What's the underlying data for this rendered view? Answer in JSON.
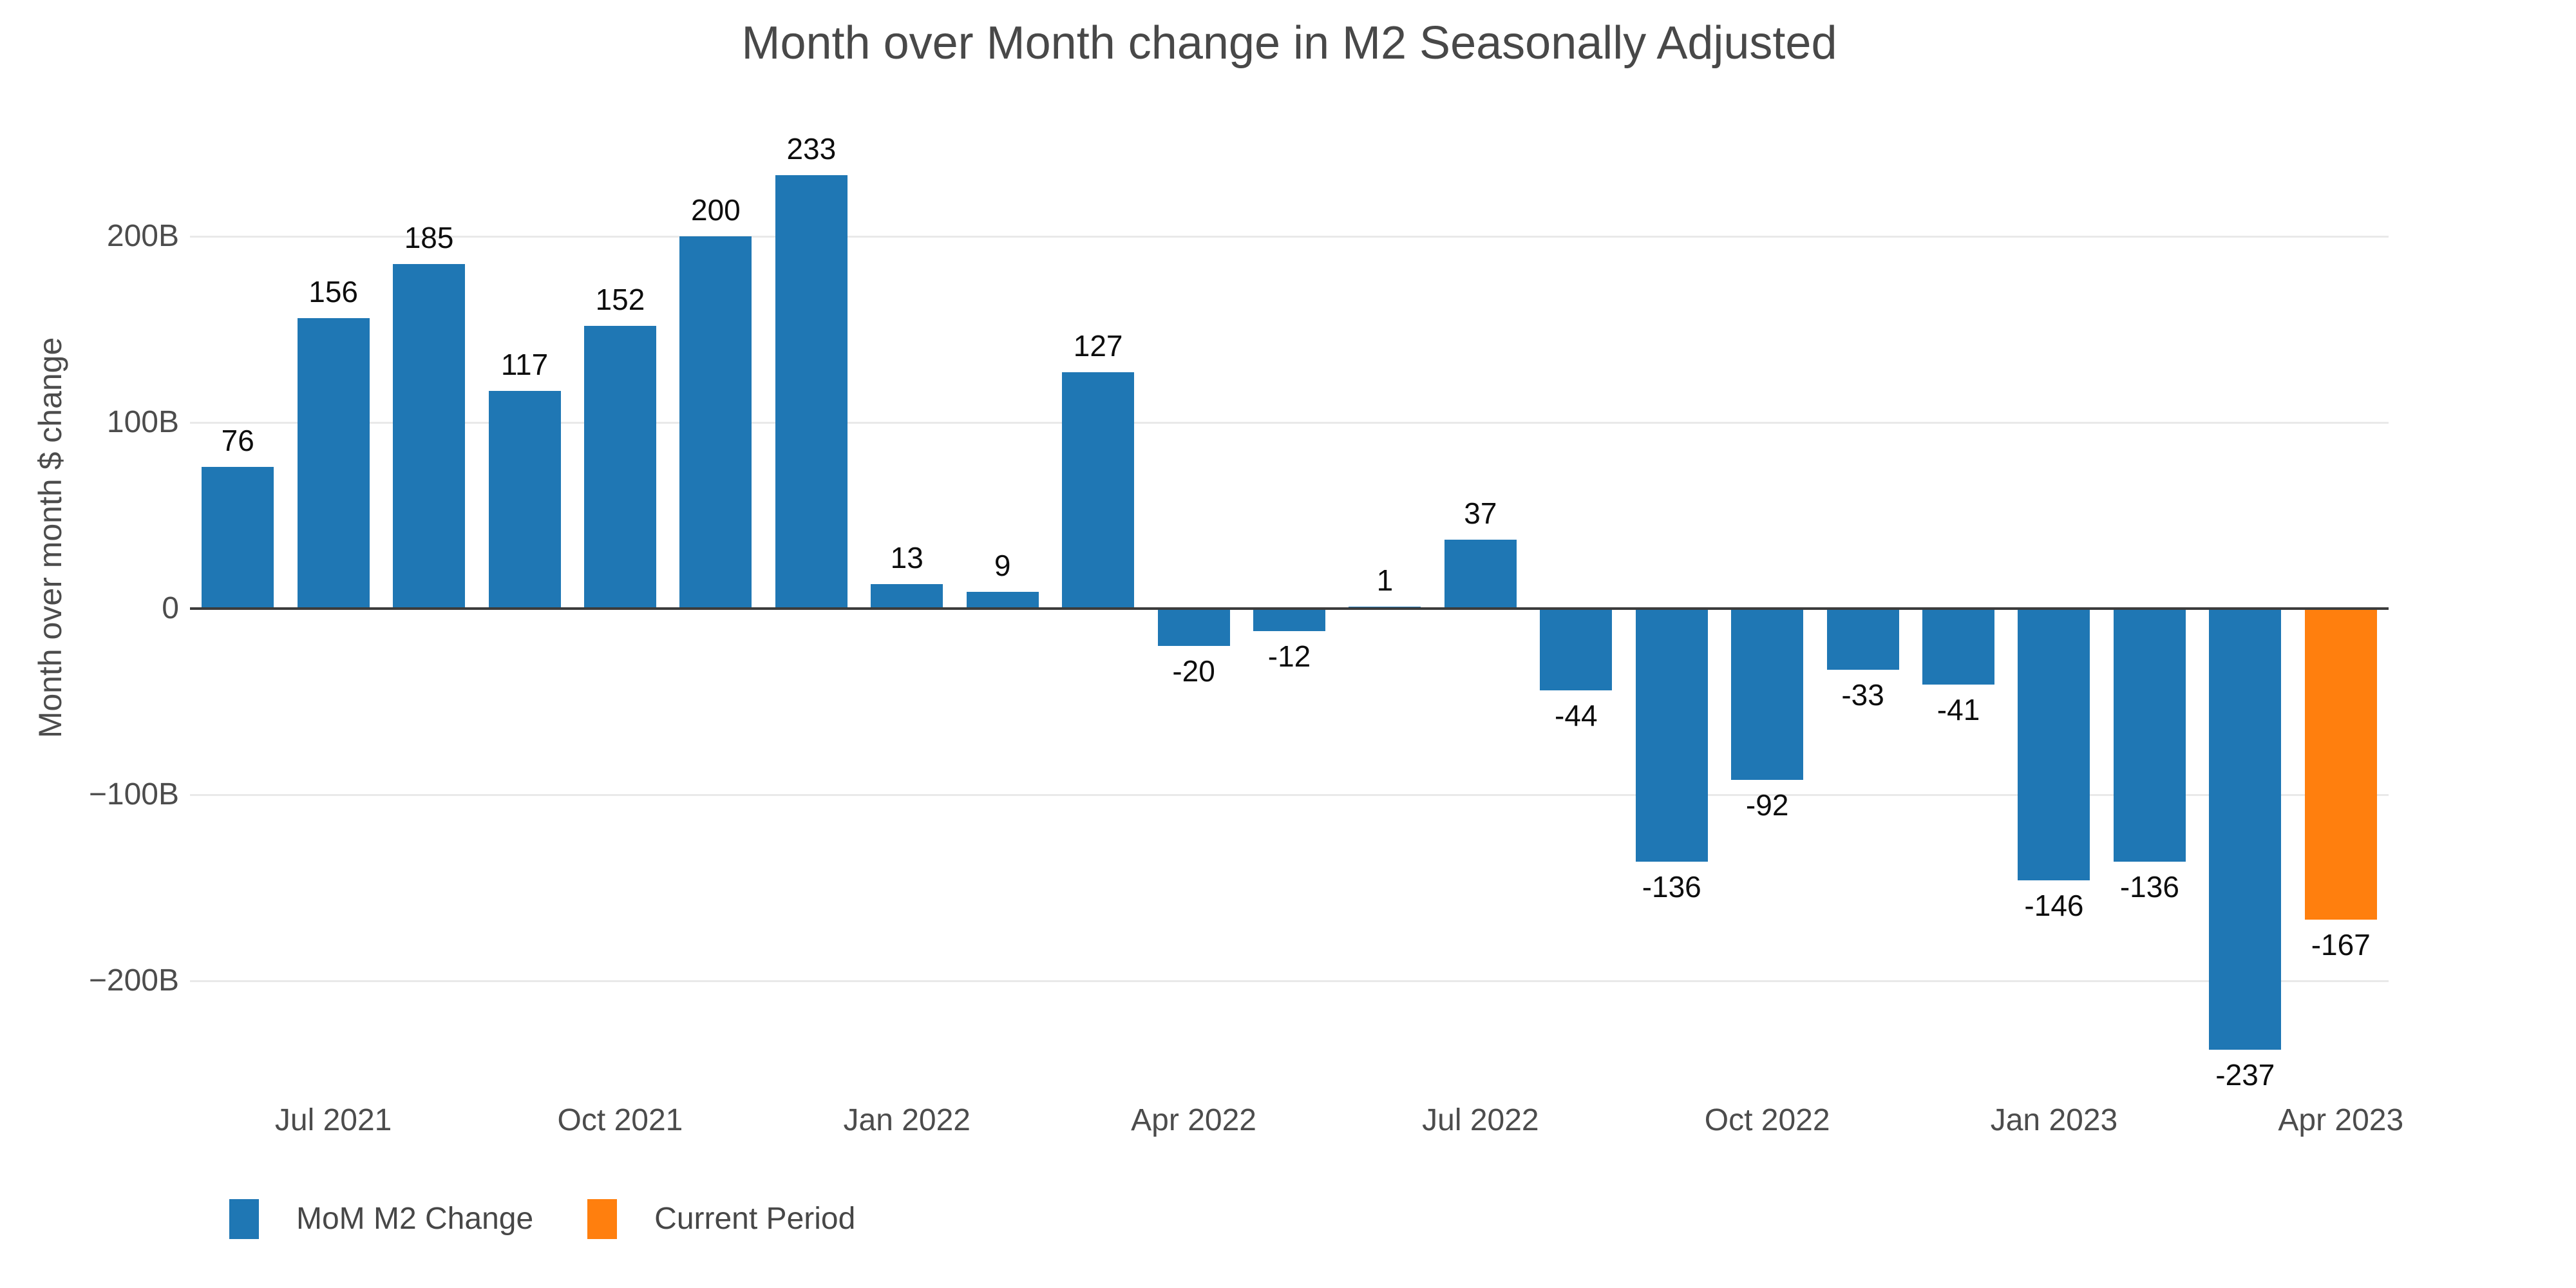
{
  "chart_data": {
    "type": "bar",
    "title": "Month over Month change in M2 Seasonally Adjusted",
    "ylabel": "Month over month $ change",
    "xlabel": "",
    "x": [
      "Jun 2021",
      "Jul 2021",
      "Aug 2021",
      "Sep 2021",
      "Oct 2021",
      "Nov 2021",
      "Dec 2021",
      "Jan 2022",
      "Feb 2022",
      "Mar 2022",
      "Apr 2022",
      "May 2022",
      "Jun 2022",
      "Jul 2022",
      "Aug 2022",
      "Sep 2022",
      "Oct 2022",
      "Nov 2022",
      "Dec 2022",
      "Jan 2023",
      "Feb 2023",
      "Mar 2023",
      "Apr 2023"
    ],
    "values": [
      76,
      156,
      185,
      117,
      152,
      200,
      233,
      13,
      9,
      127,
      -20,
      -12,
      1,
      37,
      -44,
      -136,
      -92,
      -33,
      -41,
      -146,
      -136,
      -237,
      -167
    ],
    "bar_labels": [
      "76",
      "156",
      "185",
      "117",
      "152",
      "200",
      "233",
      "13",
      "9",
      "127",
      "-20",
      "-12",
      "1",
      "37",
      "-44",
      "-136",
      "-92",
      "-33",
      "-41",
      "-146",
      "-136",
      "-237",
      "-167"
    ],
    "current_period_index": 22,
    "colors": {
      "default": "#1F77B4",
      "current": "#FF7F0E",
      "grid": "#E9E9E9",
      "zero_line": "#3C3C3C",
      "axis_text": "#4C4C4C",
      "title_text": "#484848",
      "value_label": "#0D0D0D"
    },
    "y_axis": {
      "ticks": [
        {
          "value": 200,
          "label": "200B"
        },
        {
          "value": 100,
          "label": "100B"
        },
        {
          "value": 0,
          "label": "0"
        },
        {
          "value": -100,
          "label": "−100B"
        },
        {
          "value": -200,
          "label": "−200B"
        }
      ],
      "range": [
        -270,
        270
      ]
    },
    "x_axis": {
      "ticks": [
        {
          "index": 1,
          "label": "Jul 2021"
        },
        {
          "index": 4,
          "label": "Oct 2021"
        },
        {
          "index": 7,
          "label": "Jan 2022"
        },
        {
          "index": 10,
          "label": "Apr 2022"
        },
        {
          "index": 13,
          "label": "Jul 2022"
        },
        {
          "index": 16,
          "label": "Oct 2022"
        },
        {
          "index": 19,
          "label": "Jan 2023"
        },
        {
          "index": 22,
          "label": "Apr 2023"
        }
      ]
    },
    "legend": {
      "position": "bottom-left",
      "items": [
        {
          "label": "MoM M2 Change",
          "color": "#1F77B4"
        },
        {
          "label": "Current Period",
          "color": "#FF7F0E"
        }
      ]
    },
    "grid": true
  }
}
